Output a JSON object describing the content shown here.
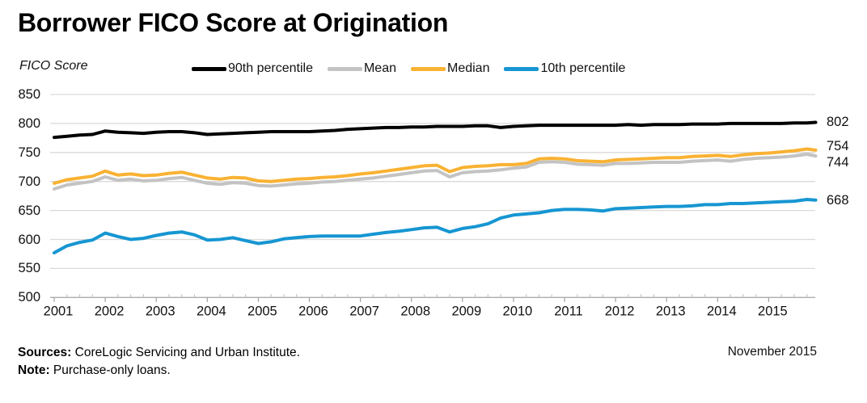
{
  "title": "Borrower FICO Score at Origination",
  "y_axis_title": "FICO Score",
  "legend": [
    {
      "label": "90th percentile",
      "color": "#000000"
    },
    {
      "label": "Mean",
      "color": "#C3C3C3"
    },
    {
      "label": "Median",
      "color": "#F9B233"
    },
    {
      "label": "10th percentile",
      "color": "#1696D2"
    }
  ],
  "footer": {
    "sources_label": "Sources:",
    "sources_text": " CoreLogic Servicing and Urban Institute.",
    "note_label": "Note:",
    "note_text": " Purchase-only loans.",
    "date": "November 2015"
  },
  "chart_data": {
    "type": "line",
    "title": "Borrower FICO Score at Origination",
    "xlabel": "",
    "ylabel": "FICO Score",
    "ylim": [
      500,
      850
    ],
    "y_ticks": [
      850,
      800,
      750,
      700,
      650,
      600,
      550,
      500
    ],
    "x_tick_years": [
      2001,
      2002,
      2003,
      2004,
      2005,
      2006,
      2007,
      2008,
      2009,
      2010,
      2011,
      2012,
      2013,
      2014,
      2015
    ],
    "grid": "horizontal",
    "legend_position": "top",
    "x_end_date": "2015-11",
    "x": [
      2001,
      2001.25,
      2001.5,
      2001.75,
      2002,
      2002.25,
      2002.5,
      2002.75,
      2003,
      2003.25,
      2003.5,
      2003.75,
      2004,
      2004.25,
      2004.5,
      2004.75,
      2005,
      2005.25,
      2005.5,
      2005.75,
      2006,
      2006.25,
      2006.5,
      2006.75,
      2007,
      2007.25,
      2007.5,
      2007.75,
      2008,
      2008.25,
      2008.5,
      2008.75,
      2009,
      2009.25,
      2009.5,
      2009.75,
      2010,
      2010.25,
      2010.5,
      2010.75,
      2011,
      2011.25,
      2011.5,
      2011.75,
      2012,
      2012.25,
      2012.5,
      2012.75,
      2013,
      2013.25,
      2013.5,
      2013.75,
      2014,
      2014.25,
      2014.5,
      2014.75,
      2015,
      2015.25,
      2015.5,
      2015.75,
      2015.92
    ],
    "series": [
      {
        "name": "90th percentile",
        "color": "#000000",
        "end_value": 802,
        "end_label": "802",
        "values": [
          776,
          778,
          780,
          781,
          787,
          785,
          784,
          783,
          785,
          786,
          786,
          784,
          781,
          782,
          783,
          784,
          785,
          786,
          786,
          786,
          786,
          787,
          788,
          790,
          791,
          792,
          793,
          793,
          794,
          794,
          795,
          795,
          795,
          796,
          796,
          793,
          795,
          796,
          797,
          797,
          797,
          797,
          797,
          797,
          797,
          798,
          797,
          798,
          798,
          798,
          799,
          799,
          799,
          800,
          800,
          800,
          800,
          800,
          801,
          801,
          802
        ]
      },
      {
        "name": "Mean",
        "color": "#C3C3C3",
        "end_value": 744,
        "end_label": "744",
        "values": [
          687,
          694,
          697,
          700,
          708,
          702,
          704,
          701,
          702,
          705,
          707,
          702,
          697,
          695,
          698,
          697,
          693,
          692,
          694,
          696,
          697,
          699,
          700,
          702,
          704,
          706,
          709,
          712,
          715,
          718,
          719,
          708,
          715,
          717,
          718,
          720,
          723,
          725,
          733,
          734,
          733,
          730,
          729,
          728,
          731,
          731,
          732,
          733,
          733,
          733,
          735,
          736,
          737,
          735,
          738,
          740,
          741,
          742,
          744,
          747,
          744
        ]
      },
      {
        "name": "Median",
        "color": "#F9B233",
        "end_value": 754,
        "end_label": "754",
        "values": [
          697,
          703,
          706,
          709,
          718,
          711,
          713,
          710,
          711,
          714,
          716,
          711,
          706,
          704,
          707,
          706,
          701,
          700,
          702,
          704,
          705,
          707,
          708,
          710,
          713,
          715,
          718,
          721,
          724,
          727,
          728,
          717,
          724,
          726,
          727,
          729,
          729,
          731,
          739,
          740,
          739,
          736,
          735,
          734,
          737,
          738,
          739,
          740,
          741,
          741,
          743,
          744,
          745,
          743,
          746,
          748,
          749,
          751,
          753,
          756,
          754
        ]
      },
      {
        "name": "10th percentile",
        "color": "#1696D2",
        "end_value": 668,
        "end_label": "668",
        "values": [
          577,
          589,
          595,
          599,
          611,
          605,
          600,
          602,
          607,
          611,
          613,
          608,
          599,
          600,
          603,
          598,
          593,
          596,
          601,
          603,
          605,
          606,
          606,
          606,
          606,
          609,
          612,
          614,
          617,
          620,
          621,
          613,
          619,
          622,
          627,
          637,
          642,
          644,
          646,
          650,
          652,
          652,
          651,
          649,
          653,
          654,
          655,
          656,
          657,
          657,
          658,
          660,
          660,
          662,
          662,
          663,
          664,
          665,
          666,
          669,
          668
        ]
      }
    ]
  }
}
